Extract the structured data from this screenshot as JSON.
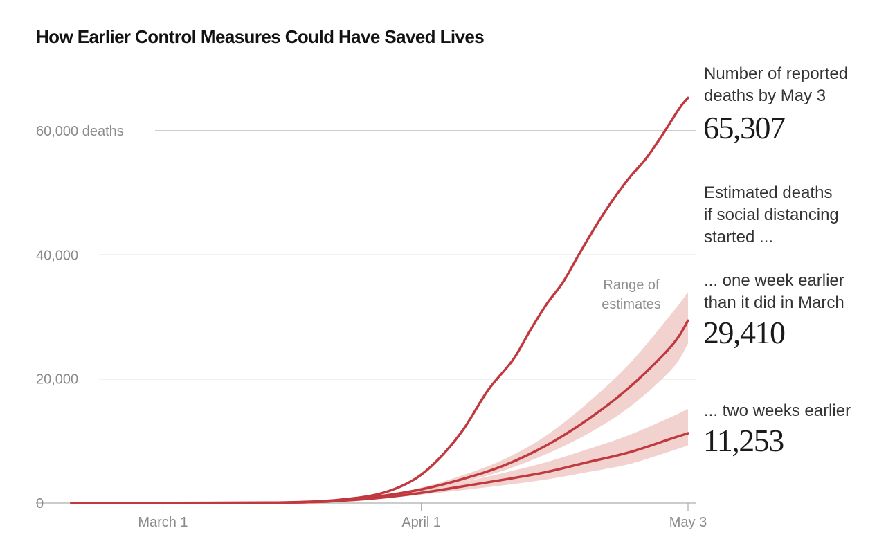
{
  "title": "How Earlier Control Measures Could Have Saved Lives",
  "annotations": {
    "reported_label_line1": "Number of reported",
    "reported_label_line2": "deaths by May 3",
    "reported_value": "65,307",
    "estimated_line1": "Estimated deaths",
    "estimated_line2": "if social distancing",
    "estimated_line3": "started ...",
    "one_week_line1": "... one week earlier",
    "one_week_line2": "than it did in March",
    "one_week_value": "29,410",
    "two_weeks_line1": "... two weeks earlier",
    "two_weeks_value": "11,253",
    "range_line1": "Range of",
    "range_line2": "estimates"
  },
  "colors": {
    "line": "#c0393f",
    "band": "#f0cdc9",
    "grid": "#9a9a9a",
    "axis_text": "#8a8a8a"
  },
  "chart_data": {
    "type": "line",
    "title": "How Earlier Control Measures Could Have Saved Lives",
    "x_ticks": [
      "March 1",
      "April 1",
      "May 3"
    ],
    "y_ticks": [
      {
        "value": 0,
        "label": "0"
      },
      {
        "value": 20000,
        "label": "20,000"
      },
      {
        "value": 40000,
        "label": "40,000"
      },
      {
        "value": 60000,
        "label": "60,000 deaths"
      }
    ],
    "ylim": [
      0,
      67000
    ],
    "xlim": [
      "2020-02-19",
      "2020-05-03"
    ],
    "grid": true,
    "series": [
      {
        "name": "Number of reported deaths by May 3",
        "dates": [
          "2020-02-19",
          "2020-03-10",
          "2020-03-17",
          "2020-03-22",
          "2020-03-27",
          "2020-03-31",
          "2020-04-03",
          "2020-04-06",
          "2020-04-09",
          "2020-04-12",
          "2020-04-14",
          "2020-04-16",
          "2020-04-18",
          "2020-04-20",
          "2020-04-22",
          "2020-04-24",
          "2020-04-26",
          "2020-04-28",
          "2020-04-30",
          "2020-05-02",
          "2020-05-03"
        ],
        "values": [
          0,
          30,
          150,
          500,
          1500,
          3700,
          7000,
          11800,
          18200,
          23100,
          27700,
          32000,
          35600,
          40300,
          44800,
          48900,
          52500,
          55600,
          59500,
          63700,
          65307
        ]
      },
      {
        "name": "one week earlier",
        "dates": [
          "2020-02-19",
          "2020-03-15",
          "2020-03-22",
          "2020-03-27",
          "2020-04-01",
          "2020-04-06",
          "2020-04-11",
          "2020-04-16",
          "2020-04-21",
          "2020-04-26",
          "2020-05-01",
          "2020-05-03"
        ],
        "values": [
          0,
          80,
          400,
          1100,
          2200,
          3900,
          6100,
          9300,
          13500,
          18700,
          25300,
          29410
        ],
        "low": [
          0,
          70,
          350,
          950,
          1950,
          3400,
          5300,
          7900,
          11200,
          15500,
          21500,
          25700
        ],
        "high": [
          0,
          95,
          460,
          1250,
          2500,
          4500,
          7100,
          10900,
          16200,
          22500,
          30500,
          34000
        ]
      },
      {
        "name": "two weeks earlier",
        "dates": [
          "2020-02-19",
          "2020-03-15",
          "2020-03-22",
          "2020-03-27",
          "2020-04-01",
          "2020-04-06",
          "2020-04-11",
          "2020-04-16",
          "2020-04-21",
          "2020-04-26",
          "2020-05-01",
          "2020-05-03"
        ],
        "values": [
          0,
          70,
          350,
          850,
          1650,
          2700,
          3800,
          5000,
          6600,
          8200,
          10400,
          11253
        ],
        "low": [
          0,
          60,
          300,
          700,
          1350,
          2100,
          2900,
          3800,
          5000,
          6300,
          8400,
          9300
        ],
        "high": [
          0,
          85,
          420,
          1050,
          2050,
          3400,
          4900,
          6600,
          8700,
          11000,
          13900,
          15200
        ]
      }
    ]
  }
}
